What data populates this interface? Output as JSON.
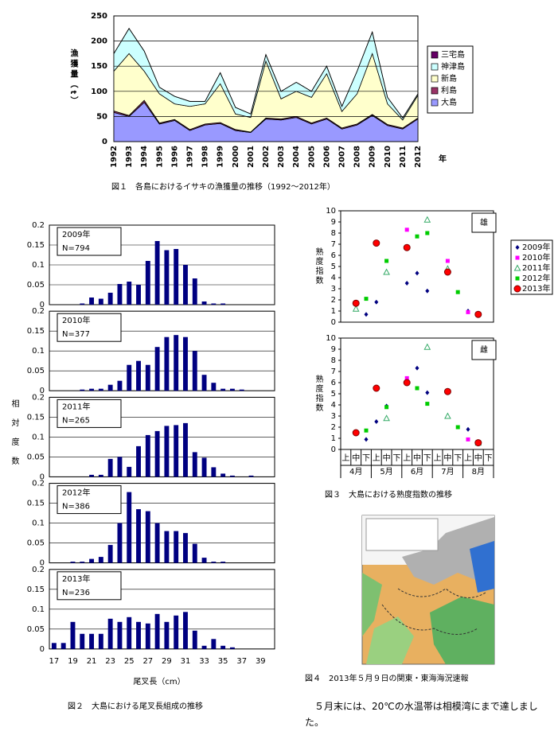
{
  "chart_data": [
    {
      "type": "stacked-area",
      "caption": "図１　各島におけるイサキの漁獲量の推移（1992～2012年）",
      "ylabel": "漁獲量（t）",
      "xlabel": "年",
      "categories": [
        "1992",
        "1993",
        "1994",
        "1995",
        "1996",
        "1997",
        "1998",
        "1999",
        "2000",
        "2001",
        "2002",
        "2003",
        "2004",
        "2005",
        "2006",
        "2007",
        "2008",
        "2009",
        "2010",
        "2011",
        "2012"
      ],
      "ylim": [
        0,
        250
      ],
      "yticks": [
        0,
        50,
        100,
        150,
        200,
        250
      ],
      "grid": true,
      "legend": "right",
      "series": [
        {
          "name": "大島",
          "color": "#9999ff",
          "values": [
            58,
            50,
            78,
            35,
            42,
            22,
            33,
            36,
            22,
            18,
            45,
            43,
            48,
            35,
            45,
            25,
            33,
            52,
            32,
            25,
            45
          ]
        },
        {
          "name": "利島",
          "color": "#993366",
          "values": [
            3,
            2,
            4,
            2,
            2,
            2,
            2,
            2,
            2,
            1,
            2,
            2,
            2,
            2,
            2,
            2,
            2,
            2,
            2,
            2,
            2
          ]
        },
        {
          "name": "新島",
          "color": "#ffffcc",
          "values": [
            79,
            123,
            58,
            58,
            31,
            46,
            40,
            77,
            31,
            29,
            113,
            40,
            50,
            51,
            88,
            33,
            60,
            121,
            41,
            16,
            45
          ]
        },
        {
          "name": "神津島",
          "color": "#ccffff",
          "values": [
            35,
            50,
            40,
            13,
            15,
            10,
            5,
            22,
            13,
            7,
            13,
            15,
            18,
            12,
            15,
            10,
            45,
            43,
            13,
            4,
            3
          ]
        },
        {
          "name": "三宅島",
          "color": "#660066",
          "values": [
            0,
            0,
            0,
            0,
            0,
            0,
            0,
            0,
            0,
            0,
            0,
            0,
            0,
            0,
            0,
            0,
            0,
            0,
            0,
            0,
            0
          ]
        }
      ]
    },
    {
      "type": "bar-panels",
      "caption": "図２　大島における尾叉長組成の推移",
      "ylabel": "相対度数",
      "xlabel": "尾叉長（cm）",
      "categories": [
        "17",
        null,
        "19",
        null,
        "21",
        null,
        "23",
        null,
        "25",
        null,
        "27",
        null,
        "29",
        null,
        "31",
        null,
        "33",
        null,
        "35",
        null,
        "37",
        null,
        "39",
        null
      ],
      "ylim": [
        0,
        0.2
      ],
      "yticks": [
        0,
        0.05,
        0.1,
        0.15,
        0.2
      ],
      "grid": true,
      "color": "#000080",
      "panels": [
        {
          "title": "2009年",
          "subtitle": "N=794",
          "values": [
            0,
            0,
            0,
            0.003,
            0.018,
            0.015,
            0.03,
            0.052,
            0.058,
            0.05,
            0.11,
            0.16,
            0.137,
            0.14,
            0.1,
            0.066,
            0.008,
            0.003,
            0.003,
            0,
            0,
            0,
            0,
            0
          ]
        },
        {
          "title": "2010年",
          "subtitle": "N=377",
          "values": [
            0,
            0,
            0,
            0.003,
            0.005,
            0.005,
            0.015,
            0.025,
            0.065,
            0.075,
            0.065,
            0.11,
            0.135,
            0.14,
            0.135,
            0.1,
            0.04,
            0.02,
            0.005,
            0.005,
            0.003,
            0,
            0,
            0
          ]
        },
        {
          "title": "2011年",
          "subtitle": "N=265",
          "values": [
            0,
            0,
            0,
            0,
            0.005,
            0.005,
            0.045,
            0.05,
            0.025,
            0.077,
            0.105,
            0.115,
            0.128,
            0.13,
            0.135,
            0.062,
            0.048,
            0.024,
            0.008,
            0.003,
            0,
            0.003,
            0,
            0
          ]
        },
        {
          "title": "2012年",
          "subtitle": "N=386",
          "values": [
            0,
            0,
            0.003,
            0.003,
            0.01,
            0.015,
            0.045,
            0.1,
            0.178,
            0.135,
            0.13,
            0.1,
            0.08,
            0.08,
            0.075,
            0.048,
            0.013,
            0.003,
            0.003,
            0,
            0,
            0,
            0,
            0
          ]
        },
        {
          "title": "2013年",
          "subtitle": "N=236",
          "values": [
            0.015,
            0.015,
            0.068,
            0.038,
            0.038,
            0.038,
            0.076,
            0.068,
            0.08,
            0.068,
            0.064,
            0.088,
            0.068,
            0.084,
            0.093,
            0.046,
            0.008,
            0.025,
            0.008,
            0.004,
            0,
            0,
            0,
            0
          ]
        }
      ]
    },
    {
      "type": "scatter-panels",
      "caption": "図３　大島における熟度指数の推移",
      "ylabel": "熟度指数",
      "categories": [
        "上",
        "中",
        "下",
        "上",
        "中",
        "下",
        "上",
        "中",
        "下",
        "上",
        "中",
        "下",
        "上",
        "中",
        "下"
      ],
      "groups": [
        "4月",
        "5月",
        "6月",
        "7月",
        "8月"
      ],
      "panels": [
        "雄",
        "雌"
      ],
      "ylim": [
        0,
        10
      ],
      "yticks": [
        0,
        1,
        2,
        3,
        4,
        5,
        6,
        7,
        8,
        9,
        10
      ],
      "legend": "right",
      "series": [
        {
          "name": "2009年",
          "color": "#000080",
          "marker": "diamond",
          "values": [
            [
              null,
              null,
              0.7,
              1.8,
              null,
              null,
              3.5,
              4.4,
              2.8,
              null,
              4.6,
              null,
              1.0,
              null,
              null
            ],
            [
              null,
              null,
              0.9,
              2.5,
              3.9,
              null,
              null,
              7.3,
              5.1,
              null,
              null,
              null,
              1.8,
              null,
              null
            ]
          ]
        },
        {
          "name": "2010年",
          "color": "#ff00ff",
          "marker": "square",
          "values": [
            [
              null,
              null,
              null,
              null,
              null,
              null,
              8.3,
              null,
              null,
              null,
              5.5,
              null,
              0.9,
              null,
              null
            ],
            [
              null,
              null,
              null,
              null,
              null,
              null,
              6.4,
              null,
              null,
              null,
              null,
              null,
              0.9,
              null,
              null
            ]
          ]
        },
        {
          "name": "2011年",
          "color": "#33aa66",
          "marker": "triangle",
          "values": [
            [
              null,
              1.2,
              null,
              null,
              4.5,
              null,
              null,
              null,
              9.2,
              null,
              4.8,
              null,
              null,
              null,
              null
            ],
            [
              null,
              null,
              null,
              null,
              2.8,
              null,
              null,
              null,
              9.2,
              null,
              3.0,
              null,
              null,
              0.6,
              null
            ]
          ]
        },
        {
          "name": "2012年",
          "color": "#00cc00",
          "marker": "square",
          "values": [
            [
              null,
              null,
              2.1,
              null,
              5.5,
              null,
              null,
              7.7,
              8.0,
              null,
              null,
              2.7,
              null,
              null,
              null
            ],
            [
              null,
              null,
              1.7,
              null,
              3.8,
              null,
              null,
              5.5,
              4.1,
              null,
              null,
              2.0,
              null,
              null,
              null
            ]
          ]
        },
        {
          "name": "2013年",
          "color": "#ff0000",
          "marker": "circle",
          "values": [
            [
              null,
              1.7,
              null,
              7.1,
              null,
              null,
              6.7,
              null,
              null,
              null,
              4.5,
              null,
              null,
              0.7,
              null
            ],
            [
              null,
              1.5,
              null,
              5.5,
              null,
              null,
              6.0,
              null,
              null,
              null,
              5.2,
              null,
              null,
              0.6,
              null
            ]
          ]
        }
      ]
    }
  ],
  "figure4": {
    "caption": "図４　2013年５月９日の関東・東海海況速報",
    "note": "５月末には、20℃の水温帯は相模湾にまで達しました。"
  }
}
